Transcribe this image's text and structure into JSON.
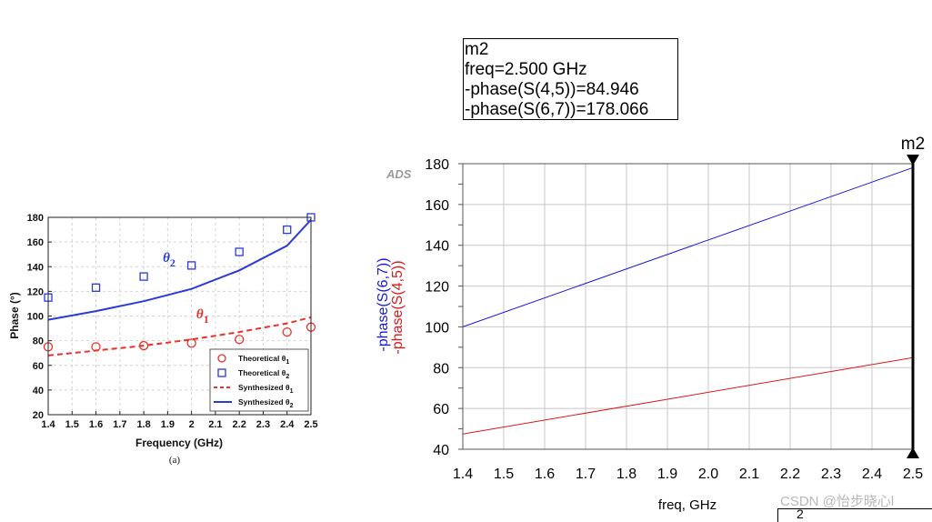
{
  "chart_data": [
    {
      "type": "scatter",
      "caption": "(a)",
      "xlabel": "Frequency (GHz)",
      "ylabel": "Phase (°)",
      "xlim": [
        1.4,
        2.5
      ],
      "ylim": [
        20,
        180
      ],
      "xticks": [
        "1.4",
        "1.5",
        "1.6",
        "1.7",
        "1.8",
        "1.9",
        "2",
        "2.1",
        "2.2",
        "2.3",
        "2.4",
        "2.5"
      ],
      "yticks": [
        "20",
        "40",
        "60",
        "80",
        "100",
        "120",
        "140",
        "160",
        "180"
      ],
      "grid": true,
      "legend_position": "bottom-right",
      "series": [
        {
          "name": "Theoretical θ1",
          "kind": "marker-circle",
          "color": "#e8312a",
          "x": [
            1.4,
            1.6,
            1.8,
            2.0,
            2.2,
            2.4,
            2.5
          ],
          "y": [
            75,
            75,
            76,
            78,
            81,
            87,
            91
          ]
        },
        {
          "name": "Theoretical θ2",
          "kind": "marker-square",
          "color": "#2a3bd6",
          "x": [
            1.4,
            1.6,
            1.8,
            2.0,
            2.2,
            2.4,
            2.5
          ],
          "y": [
            115,
            123,
            132,
            141,
            152,
            170,
            180
          ]
        },
        {
          "name": "Synthesized θ1",
          "kind": "dashed-line",
          "color": "#e8312a",
          "x": [
            1.4,
            1.6,
            1.8,
            2.0,
            2.2,
            2.4,
            2.5
          ],
          "y": [
            68,
            72,
            76,
            81,
            87,
            94,
            99
          ]
        },
        {
          "name": "Synthesized θ2",
          "kind": "solid-line",
          "color": "#2a3bd6",
          "x": [
            1.4,
            1.6,
            1.8,
            2.0,
            2.2,
            2.4,
            2.5
          ],
          "y": [
            97,
            104,
            112,
            122,
            137,
            157,
            178
          ]
        }
      ],
      "annotations": [
        {
          "text": "θ",
          "sub": "2",
          "x": 1.88,
          "y": 144,
          "color": "#2a3bd6"
        },
        {
          "text": "θ",
          "sub": "1",
          "x": 2.02,
          "y": 98,
          "color": "#e8312a"
        }
      ]
    },
    {
      "type": "line",
      "xlabel": "freq, GHz",
      "xlim": [
        1.4,
        2.5
      ],
      "ylim": [
        40,
        180
      ],
      "xticks": [
        "1.4",
        "1.5",
        "1.6",
        "1.7",
        "1.8",
        "1.9",
        "2.0",
        "2.1",
        "2.2",
        "2.3",
        "2.4",
        "2.5"
      ],
      "yticks": [
        "40",
        "60",
        "80",
        "100",
        "120",
        "140",
        "160",
        "180"
      ],
      "grid": true,
      "ylabel_blue": "-phase(S(6,7))",
      "ylabel_red": "-phase(S(4,5))",
      "logo": "ADS",
      "series": [
        {
          "name": "-phase(S(6,7))",
          "color": "#1a1ad8",
          "x": [
            1.4,
            2.5
          ],
          "y": [
            100,
            178.066
          ]
        },
        {
          "name": "-phase(S(4,5))",
          "color": "#d81a1a",
          "x": [
            1.4,
            2.5
          ],
          "y": [
            47.5,
            84.946
          ]
        }
      ],
      "marker": {
        "name": "m2",
        "freq": 2.5,
        "lines": [
          "m2",
          "freq=2.500 GHz",
          "-phase(S(4,5))=84.946",
          "-phase(S(6,7))=178.066"
        ]
      },
      "corner_fragment": "2"
    }
  ],
  "watermark": "CSDN @怡步晓心l"
}
